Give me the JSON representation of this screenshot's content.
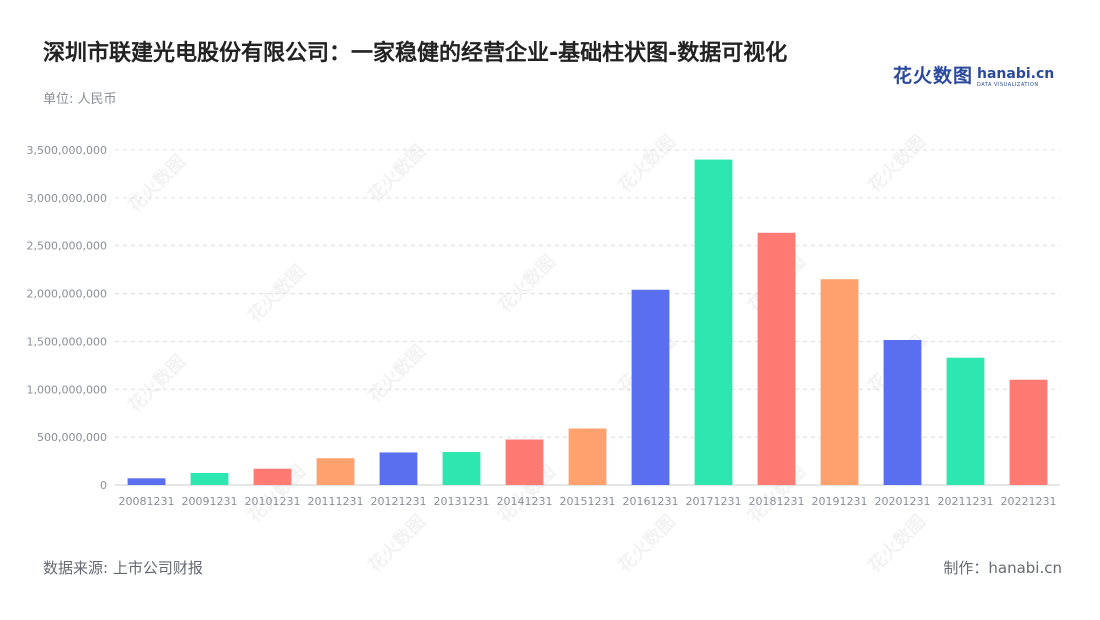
{
  "header": {
    "title": "深圳市联建光电股份有限公司：一家稳健的经营企业-基础柱状图-数据可视化",
    "unit": "单位: 人民币"
  },
  "logo": {
    "cn": "花火数图",
    "en": "hanabi.cn",
    "sub": "DATA VISUALIZATION",
    "watermark": "花火数图"
  },
  "footer": {
    "source": "数据来源: 上市公司财报",
    "credit": "制作：hanabi.cn"
  },
  "colors": {
    "palette": [
      "#5a6ff0",
      "#2ee6b0",
      "#ff7a72",
      "#ffa16e"
    ],
    "grid": "#dddddd",
    "axis": "#cccccc",
    "brand": "#2b4a9c"
  },
  "chart_data": {
    "type": "bar",
    "categories": [
      "20081231",
      "20091231",
      "20101231",
      "20111231",
      "20121231",
      "20131231",
      "20141231",
      "20151231",
      "20161231",
      "20171231",
      "20181231",
      "20191231",
      "20201231",
      "20211231",
      "20221231"
    ],
    "values": [
      70000000,
      125000000,
      170000000,
      280000000,
      340000000,
      345000000,
      475000000,
      590000000,
      2040000000,
      3400000000,
      2635000000,
      2150000000,
      1515000000,
      1330000000,
      1100000000
    ],
    "ylim": [
      0,
      3500000000
    ],
    "yticks": [
      0,
      500000000,
      1000000000,
      1500000000,
      2000000000,
      2500000000,
      3000000000,
      3500000000
    ],
    "ytick_labels": [
      "0",
      "500,000,000",
      "1,000,000,000",
      "1,500,000,000",
      "2,000,000,000",
      "2,500,000,000",
      "3,000,000,000",
      "3,500,000,000"
    ],
    "grid": true,
    "legend": "none"
  }
}
